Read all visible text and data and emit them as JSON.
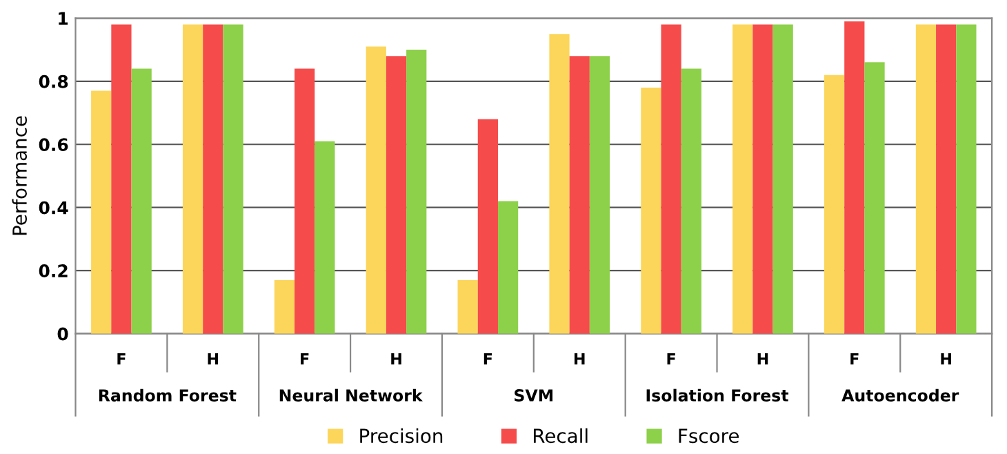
{
  "chart_data": {
    "type": "bar",
    "ylabel": "Performance",
    "categories": [
      "F",
      "H",
      "F",
      "H",
      "F",
      "H",
      "F",
      "H",
      "F",
      "H"
    ],
    "annotations": [
      "Random Forest",
      "Neural Network",
      "SVM",
      "Isolation Forest",
      "Autoencoder"
    ],
    "series": [
      {
        "name": "Precision",
        "color": "#fcd65a",
        "values": [
          0.77,
          0.98,
          0.17,
          0.91,
          0.17,
          0.95,
          0.78,
          0.98,
          0.82,
          0.98
        ]
      },
      {
        "name": "Recall",
        "color": "#f64b4b",
        "values": [
          0.98,
          0.98,
          0.84,
          0.88,
          0.68,
          0.88,
          0.98,
          0.98,
          0.99,
          0.98
        ]
      },
      {
        "name": "Fscore",
        "color": "#8dd04a",
        "values": [
          0.84,
          0.98,
          0.61,
          0.9,
          0.42,
          0.88,
          0.84,
          0.98,
          0.86,
          0.98
        ]
      }
    ],
    "ylim": [
      0,
      1
    ],
    "yticks": [
      0,
      0.2,
      0.4,
      0.6,
      0.8,
      1
    ],
    "grid": "y",
    "legend": "bottom"
  }
}
